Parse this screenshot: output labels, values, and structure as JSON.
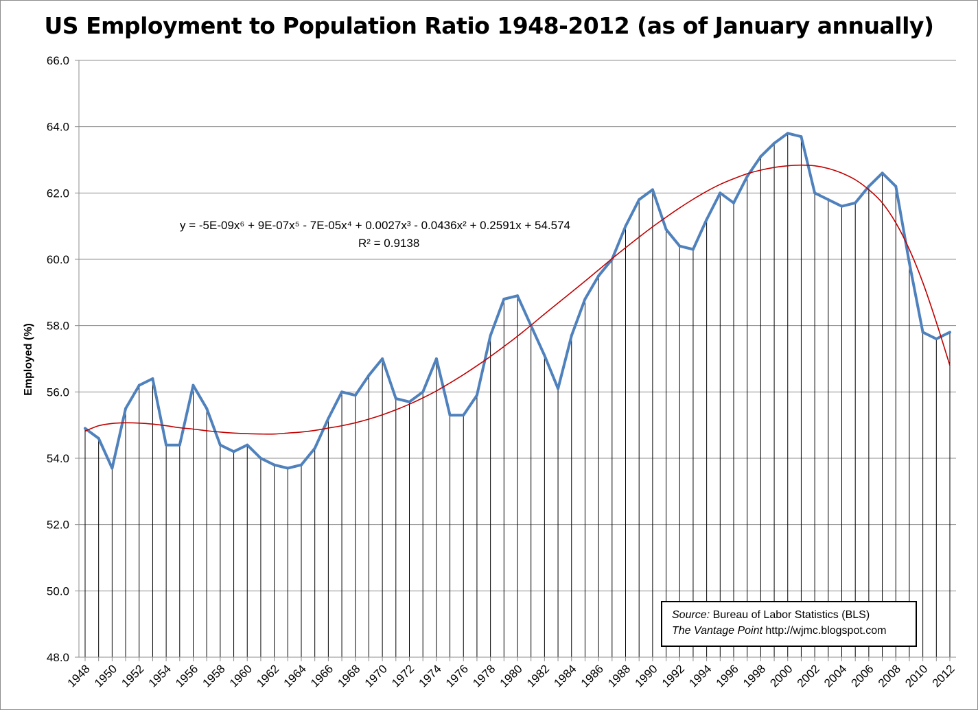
{
  "chart_data": {
    "type": "line",
    "title": "US Employment to Population Ratio 1948-2012 (as of January annually)",
    "ylabel": "Employed (%)",
    "xlabel": "",
    "ylim": [
      48.0,
      66.0
    ],
    "yticks": [
      "48.0",
      "50.0",
      "52.0",
      "54.0",
      "56.0",
      "58.0",
      "60.0",
      "62.0",
      "64.0",
      "66.0"
    ],
    "xtick_labels": [
      "1948",
      "1950",
      "1952",
      "1954",
      "1956",
      "1958",
      "1960",
      "1962",
      "1964",
      "1966",
      "1968",
      "1970",
      "1972",
      "1974",
      "1976",
      "1978",
      "1980",
      "1982",
      "1984",
      "1986",
      "1988",
      "1990",
      "1992",
      "1994",
      "1996",
      "1998",
      "2000",
      "2002",
      "2004",
      "2006",
      "2008",
      "2010",
      "2012"
    ],
    "grid": "horizontal",
    "drop_lines": true,
    "x": [
      1948,
      1949,
      1950,
      1951,
      1952,
      1953,
      1954,
      1955,
      1956,
      1957,
      1958,
      1959,
      1960,
      1961,
      1962,
      1963,
      1964,
      1965,
      1966,
      1967,
      1968,
      1969,
      1970,
      1971,
      1972,
      1973,
      1974,
      1975,
      1976,
      1977,
      1978,
      1979,
      1980,
      1981,
      1982,
      1983,
      1984,
      1985,
      1986,
      1987,
      1988,
      1989,
      1990,
      1991,
      1992,
      1993,
      1994,
      1995,
      1996,
      1997,
      1998,
      1999,
      2000,
      2001,
      2002,
      2003,
      2004,
      2005,
      2006,
      2007,
      2008,
      2009,
      2010,
      2011,
      2012
    ],
    "series": [
      {
        "color": "#4f81bd",
        "values": [
          54.9,
          54.6,
          53.7,
          55.5,
          56.2,
          56.4,
          54.4,
          54.4,
          56.2,
          55.5,
          54.4,
          54.2,
          54.4,
          54.0,
          53.8,
          53.7,
          53.8,
          54.3,
          55.2,
          56.0,
          55.9,
          56.5,
          57.0,
          55.8,
          55.7,
          56.0,
          57.0,
          55.3,
          55.3,
          55.9,
          57.7,
          58.8,
          58.9,
          58.0,
          57.1,
          56.1,
          57.7,
          58.8,
          59.5,
          60.0,
          61.0,
          61.8,
          62.1,
          60.9,
          60.4,
          60.3,
          61.2,
          62.0,
          61.7,
          62.5,
          63.1,
          63.5,
          63.8,
          63.7,
          62.0,
          61.8,
          61.6,
          61.7,
          62.2,
          62.6,
          62.2,
          59.9,
          57.8,
          57.6,
          57.8
        ]
      }
    ],
    "trendline": {
      "type": "polynomial",
      "order": 6,
      "color": "#c00000",
      "equation": "y = -5E-09x⁶ + 9E-07x⁵ - 7E-05x⁴ + 0.0027x³ - 0.0436x² + 0.2591x + 54.574",
      "r_squared": "R² = 0.9138",
      "values": [
        54.82,
        54.98,
        55.05,
        55.07,
        55.06,
        55.03,
        54.98,
        54.92,
        54.88,
        54.83,
        54.79,
        54.76,
        54.74,
        54.73,
        54.73,
        54.76,
        54.79,
        54.84,
        54.91,
        54.98,
        55.07,
        55.18,
        55.31,
        55.46,
        55.63,
        55.82,
        56.03,
        56.27,
        56.52,
        56.79,
        57.07,
        57.37,
        57.68,
        58.01,
        58.35,
        58.68,
        59.01,
        59.34,
        59.68,
        60.02,
        60.35,
        60.67,
        60.98,
        61.27,
        61.55,
        61.81,
        62.05,
        62.26,
        62.43,
        62.58,
        62.69,
        62.77,
        62.82,
        62.84,
        62.82,
        62.74,
        62.6,
        62.4,
        62.1,
        61.7,
        61.1,
        60.3,
        59.3,
        58.1,
        56.8
      ]
    }
  },
  "source_box": {
    "source_label": "Source:",
    "source_text": " Bureau of Labor Statistics (BLS)",
    "site_label": "The Vantage Point",
    "site_text": " http://wjmc.blogspot.com"
  }
}
